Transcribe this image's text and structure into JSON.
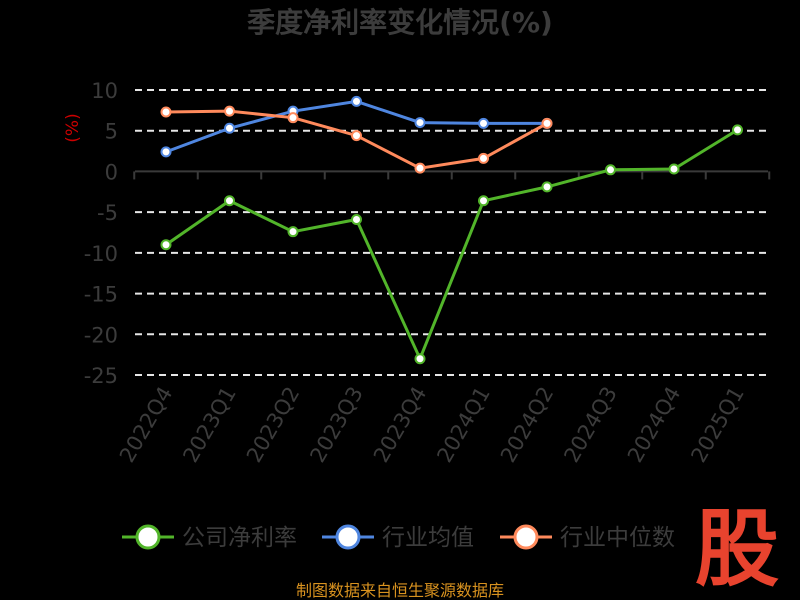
{
  "chart_data": {
    "type": "line",
    "title": "季度净利率变化情况(%)",
    "ylabel": "(%)",
    "categories": [
      "2022Q4",
      "2023Q1",
      "2023Q2",
      "2023Q3",
      "2023Q4",
      "2024Q1",
      "2024Q2",
      "2024Q3",
      "2024Q4",
      "2025Q1"
    ],
    "ylim": [
      -25,
      10
    ],
    "yticks": [
      10,
      5,
      0,
      -5,
      -10,
      -15,
      -20,
      -25
    ],
    "grid": true,
    "legend_position": "bottom",
    "series": [
      {
        "name": "公司净利率",
        "color": "#52b52a",
        "values": [
          -9.0,
          -3.6,
          -7.4,
          -5.9,
          -23.0,
          -3.6,
          -1.9,
          0.2,
          0.3,
          5.1
        ]
      },
      {
        "name": "行业均值",
        "color": "#4f86e0",
        "values": [
          2.4,
          5.3,
          7.4,
          8.6,
          6.0,
          5.9,
          5.9,
          null,
          null,
          null
        ]
      },
      {
        "name": "行业中位数",
        "color": "#ff8a5c",
        "values": [
          7.3,
          7.4,
          6.6,
          4.4,
          0.4,
          1.6,
          5.9,
          null,
          null,
          null
        ]
      }
    ]
  },
  "source": "制图数据来自恒生聚源数据库",
  "logo": "股"
}
